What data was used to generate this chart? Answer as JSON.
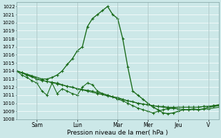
{
  "xlabel": "Pression niveau de la mer( hPa )",
  "bg_color": "#cce8e8",
  "grid_color": "#b8d8d8",
  "line_color": "#1a6b1a",
  "ylim": [
    1008,
    1022.5
  ],
  "ytick_min": 1008,
  "ytick_max": 1022,
  "day_labels": [
    "Sam",
    "Lun",
    "Mar",
    "Mer",
    "Jeu",
    "V"
  ],
  "day_x": [
    24,
    72,
    120,
    156,
    192,
    228
  ],
  "xlim": [
    0,
    240
  ],
  "series_peak_x": [
    0,
    6,
    12,
    18,
    24,
    30,
    36,
    42,
    48,
    54,
    60,
    66,
    72,
    78,
    84,
    90,
    96,
    102,
    108,
    114,
    120,
    126,
    132,
    138,
    144,
    150,
    156,
    162,
    168,
    174,
    180,
    186,
    192,
    198,
    204,
    210,
    216,
    222,
    228,
    234,
    240
  ],
  "series_peak_y": [
    1014.0,
    1013.8,
    1013.6,
    1013.4,
    1013.2,
    1013.0,
    1013.0,
    1013.2,
    1013.5,
    1014.0,
    1014.8,
    1015.5,
    1016.5,
    1017.0,
    1019.5,
    1020.5,
    1021.0,
    1021.5,
    1022.0,
    1021.0,
    1020.5,
    1018.0,
    1014.5,
    1011.5,
    1011.0,
    1010.5,
    1010.0,
    1009.5,
    1009.2,
    1008.8,
    1008.7,
    1008.8,
    1009.0,
    1009.2,
    1009.2,
    1009.3,
    1009.2,
    1009.3,
    1009.5,
    1009.6,
    1009.7
  ],
  "series_flat1_x": [
    0,
    6,
    12,
    18,
    24,
    30,
    36,
    42,
    48,
    54,
    60,
    66,
    72,
    78,
    84,
    90,
    96,
    102,
    108,
    114,
    120,
    126,
    132,
    138,
    144,
    150,
    156,
    162,
    168,
    174,
    180,
    186,
    192,
    198,
    204,
    210,
    216,
    222,
    228,
    234,
    240
  ],
  "series_flat1_y": [
    1014.0,
    1013.8,
    1013.5,
    1013.3,
    1013.0,
    1012.8,
    1012.7,
    1012.6,
    1012.5,
    1012.3,
    1012.1,
    1012.0,
    1011.8,
    1011.7,
    1011.6,
    1011.5,
    1011.3,
    1011.2,
    1011.0,
    1010.8,
    1010.7,
    1010.5,
    1010.3,
    1010.2,
    1010.0,
    1009.9,
    1009.8,
    1009.7,
    1009.6,
    1009.6,
    1009.5,
    1009.5,
    1009.5,
    1009.5,
    1009.5,
    1009.5,
    1009.5,
    1009.6,
    1009.6,
    1009.7,
    1009.8
  ],
  "series_flat2_x": [
    0,
    12,
    24,
    36,
    48,
    60,
    72,
    84,
    96,
    108,
    120,
    132,
    144,
    156,
    168,
    180,
    192,
    204,
    216,
    228,
    240
  ],
  "series_flat2_y": [
    1014.0,
    1013.5,
    1013.0,
    1012.7,
    1012.4,
    1012.1,
    1011.8,
    1011.5,
    1011.2,
    1010.9,
    1010.6,
    1010.3,
    1010.0,
    1009.8,
    1009.6,
    1009.4,
    1009.3,
    1009.2,
    1009.2,
    1009.3,
    1009.5
  ],
  "series_wiggly_x": [
    0,
    6,
    12,
    18,
    24,
    30,
    36,
    42,
    48,
    54,
    60,
    66,
    72,
    78,
    84,
    90,
    96,
    102,
    108,
    114,
    120,
    126,
    132,
    138,
    144,
    150,
    156,
    162,
    168,
    174,
    180,
    186,
    192,
    198,
    204,
    210,
    216,
    222,
    228,
    234,
    240
  ],
  "series_wiggly_y": [
    1014.0,
    1013.5,
    1013.2,
    1012.8,
    1012.5,
    1011.5,
    1011.0,
    1012.5,
    1011.2,
    1011.8,
    1011.5,
    1011.2,
    1011.0,
    1012.0,
    1012.5,
    1012.3,
    1011.5,
    1011.2,
    1011.0,
    1010.8,
    1010.5,
    1010.3,
    1010.0,
    1009.7,
    1009.4,
    1009.2,
    1009.0,
    1008.8,
    1009.0,
    1009.2,
    1009.3,
    1009.4,
    1009.5,
    1009.5,
    1009.5,
    1009.5,
    1009.5,
    1009.6,
    1009.6,
    1009.7,
    1009.8
  ]
}
